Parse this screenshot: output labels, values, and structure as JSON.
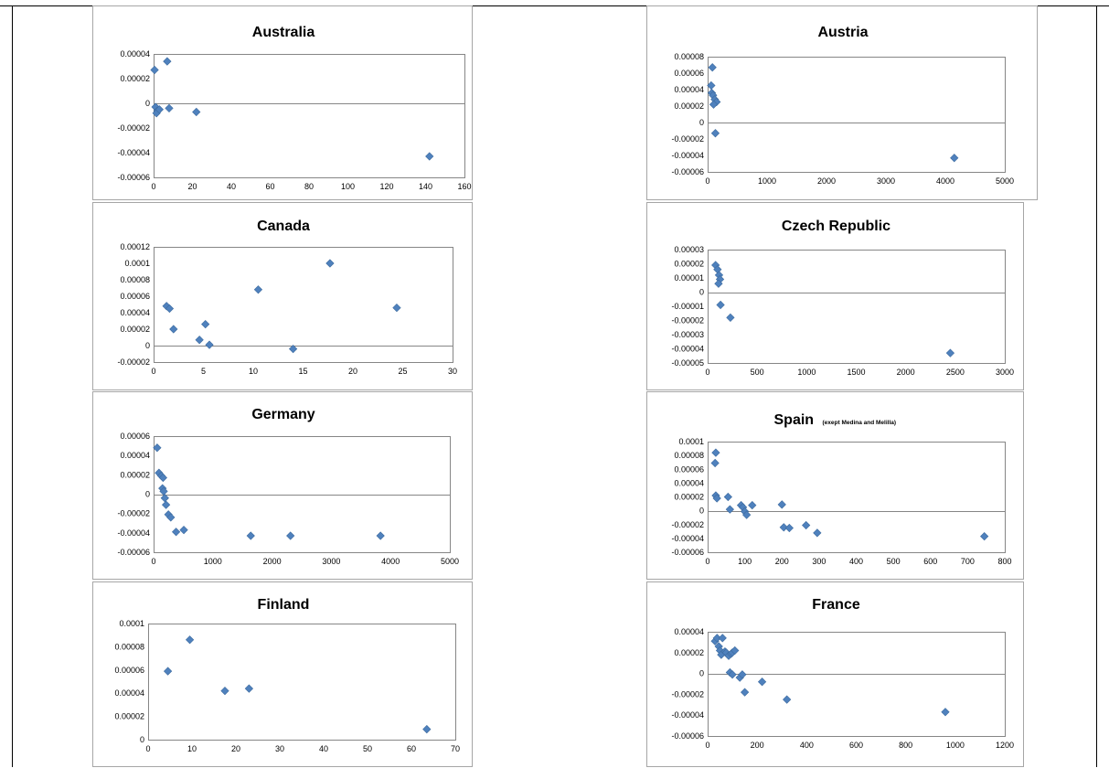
{
  "colors": {
    "marker": "#4f81bd",
    "border": "#a6a6a6",
    "page_line": "#000000"
  },
  "chart_data": [
    {
      "type": "scatter",
      "title": "Australia",
      "subtitle": "",
      "xlim": [
        0,
        160
      ],
      "xticks": [
        "0",
        "20",
        "40",
        "60",
        "80",
        "100",
        "120",
        "140",
        "160"
      ],
      "ylim": [
        -6e-05,
        4e-05
      ],
      "yticks": [
        "-0.00006",
        "-0.00004",
        "-0.00002",
        "0",
        "0.00002",
        "0.00004"
      ],
      "grid": false,
      "series": [
        {
          "points": [
            [
              0.5,
              2.7e-05
            ],
            [
              1,
              -3e-06
            ],
            [
              2,
              -6e-06
            ],
            [
              1.5,
              -8e-06
            ],
            [
              3,
              -5e-06
            ],
            [
              7,
              3.4e-05
            ],
            [
              8,
              -4e-06
            ],
            [
              22,
              -7e-06
            ],
            [
              142,
              -4.3e-05
            ]
          ]
        }
      ]
    },
    {
      "type": "scatter",
      "title": "Austria",
      "subtitle": "",
      "xlim": [
        0,
        5000
      ],
      "xticks": [
        "0",
        "1000",
        "2000",
        "3000",
        "4000",
        "5000"
      ],
      "ylim": [
        -6e-05,
        8e-05
      ],
      "yticks": [
        "-0.00006",
        "-0.00004",
        "-0.00002",
        "0",
        "0.00002",
        "0.00004",
        "0.00006",
        "0.00008"
      ],
      "grid": false,
      "series": [
        {
          "points": [
            [
              80,
              6.7e-05
            ],
            [
              60,
              4.5e-05
            ],
            [
              70,
              3.6e-05
            ],
            [
              90,
              3.3e-05
            ],
            [
              120,
              2.8e-05
            ],
            [
              150,
              2.5e-05
            ],
            [
              100,
              2.2e-05
            ],
            [
              130,
              -1.3e-05
            ],
            [
              4150,
              -4.3e-05
            ]
          ]
        }
      ]
    },
    {
      "type": "scatter",
      "title": "Canada",
      "subtitle": "",
      "xlim": [
        0,
        30
      ],
      "xticks": [
        "0",
        "5",
        "10",
        "15",
        "20",
        "25",
        "30"
      ],
      "ylim": [
        -2e-05,
        0.00012
      ],
      "yticks": [
        "-0.00002",
        "0",
        "0.00002",
        "0.00004",
        "0.00006",
        "0.00008",
        "0.0001",
        "0.00012"
      ],
      "grid": false,
      "series": [
        {
          "points": [
            [
              1.3,
              4.8e-05
            ],
            [
              1.6,
              4.5e-05
            ],
            [
              2,
              2e-05
            ],
            [
              4.6,
              7e-06
            ],
            [
              5.2,
              2.6e-05
            ],
            [
              5.6,
              1e-06
            ],
            [
              10.5,
              6.8e-05
            ],
            [
              14,
              -4e-06
            ],
            [
              17.7,
              0.0001
            ],
            [
              24.4,
              4.6e-05
            ]
          ]
        }
      ]
    },
    {
      "type": "scatter",
      "title": "Czech Republic",
      "subtitle": "",
      "xlim": [
        0,
        3000
      ],
      "xticks": [
        "0",
        "500",
        "1000",
        "1500",
        "2000",
        "2500",
        "3000"
      ],
      "ylim": [
        -5e-05,
        3e-05
      ],
      "yticks": [
        "-0.00005",
        "-0.00004",
        "-0.00003",
        "-0.00002",
        "-0.00001",
        "0",
        "0.00001",
        "0.00002",
        "0.00003"
      ],
      "grid": false,
      "series": [
        {
          "points": [
            [
              80,
              1.9e-05
            ],
            [
              100,
              1.6e-05
            ],
            [
              115,
              1.2e-05
            ],
            [
              125,
              9e-06
            ],
            [
              110,
              6e-06
            ],
            [
              130,
              -9e-06
            ],
            [
              230,
              -1.8e-05
            ],
            [
              2450,
              -4.3e-05
            ]
          ]
        }
      ]
    },
    {
      "type": "scatter",
      "title": "Germany",
      "subtitle": "",
      "xlim": [
        0,
        5000
      ],
      "xticks": [
        "0",
        "1000",
        "2000",
        "3000",
        "4000",
        "5000"
      ],
      "ylim": [
        -6e-05,
        6e-05
      ],
      "yticks": [
        "-0.00006",
        "-0.00004",
        "-0.00002",
        "0",
        "0.00002",
        "0.00004",
        "0.00006"
      ],
      "grid": false,
      "series": [
        {
          "points": [
            [
              60,
              4.8e-05
            ],
            [
              90,
              2.2e-05
            ],
            [
              130,
              1.9e-05
            ],
            [
              160,
              1.7e-05
            ],
            [
              150,
              6e-06
            ],
            [
              170,
              3e-06
            ],
            [
              190,
              -4e-06
            ],
            [
              210,
              -1.1e-05
            ],
            [
              250,
              -2.1e-05
            ],
            [
              290,
              -2.4e-05
            ],
            [
              380,
              -3.9e-05
            ],
            [
              510,
              -3.7e-05
            ],
            [
              1640,
              -4.3e-05
            ],
            [
              2310,
              -4.3e-05
            ],
            [
              3830,
              -4.3e-05
            ]
          ]
        }
      ]
    },
    {
      "type": "scatter",
      "title": "Spain",
      "subtitle": "(exept Medina and Melilla)",
      "xlim": [
        0,
        800
      ],
      "xticks": [
        "0",
        "100",
        "200",
        "300",
        "400",
        "500",
        "600",
        "700",
        "800"
      ],
      "ylim": [
        -6e-05,
        0.0001
      ],
      "yticks": [
        "-0.00006",
        "-0.00004",
        "-0.00002",
        "0",
        "0.00002",
        "0.00004",
        "0.00006",
        "0.00008",
        "0.0001"
      ],
      "grid": false,
      "series": [
        {
          "points": [
            [
              22,
              8.4e-05
            ],
            [
              20,
              6.9e-05
            ],
            [
              22,
              2.2e-05
            ],
            [
              25,
              1.8e-05
            ],
            [
              55,
              2e-05
            ],
            [
              60,
              2e-06
            ],
            [
              90,
              8e-06
            ],
            [
              95,
              5e-06
            ],
            [
              100,
              -1e-06
            ],
            [
              105,
              -6e-06
            ],
            [
              120,
              8e-06
            ],
            [
              200,
              9e-06
            ],
            [
              205,
              -2.4e-05
            ],
            [
              220,
              -2.5e-05
            ],
            [
              265,
              -2.1e-05
            ],
            [
              295,
              -3.2e-05
            ],
            [
              745,
              -3.7e-05
            ]
          ]
        }
      ]
    },
    {
      "type": "scatter",
      "title": "Finland",
      "subtitle": "",
      "xlim": [
        0,
        70
      ],
      "xticks": [
        "0",
        "10",
        "20",
        "30",
        "40",
        "50",
        "60",
        "70"
      ],
      "ylim": [
        0,
        0.0001
      ],
      "yticks": [
        "0",
        "0.00002",
        "0.00004",
        "0.00006",
        "0.00008",
        "0.0001"
      ],
      "grid": false,
      "series": [
        {
          "points": [
            [
              4.5,
              5.9e-05
            ],
            [
              9.5,
              8.6e-05
            ],
            [
              17.5,
              4.2e-05
            ],
            [
              23,
              4.4e-05
            ],
            [
              63.5,
              9e-06
            ]
          ]
        }
      ]
    },
    {
      "type": "scatter",
      "title": "France",
      "subtitle": "",
      "xlim": [
        0,
        1200
      ],
      "xticks": [
        "0",
        "200",
        "400",
        "600",
        "800",
        "1000",
        "1200"
      ],
      "ylim": [
        -6e-05,
        4e-05
      ],
      "yticks": [
        "-0.00006",
        "-0.00004",
        "-0.00002",
        "0",
        "0.00002",
        "0.00004"
      ],
      "grid": false,
      "series": [
        {
          "points": [
            [
              30,
              3.1e-05
            ],
            [
              38,
              3.4e-05
            ],
            [
              45,
              2.6e-05
            ],
            [
              50,
              2.2e-05
            ],
            [
              55,
              1.8e-05
            ],
            [
              60,
              3.4e-05
            ],
            [
              70,
              2.1e-05
            ],
            [
              75,
              2e-05
            ],
            [
              85,
              1.7e-05
            ],
            [
              95,
              1.9e-05
            ],
            [
              100,
              2e-05
            ],
            [
              110,
              2.2e-05
            ],
            [
              90,
              1e-06
            ],
            [
              100,
              -1e-06
            ],
            [
              130,
              -4e-06
            ],
            [
              140,
              -1e-06
            ],
            [
              150,
              -1.8e-05
            ],
            [
              220,
              -8e-06
            ],
            [
              320,
              -2.5e-05
            ],
            [
              960,
              -3.7e-05
            ]
          ]
        }
      ]
    }
  ]
}
